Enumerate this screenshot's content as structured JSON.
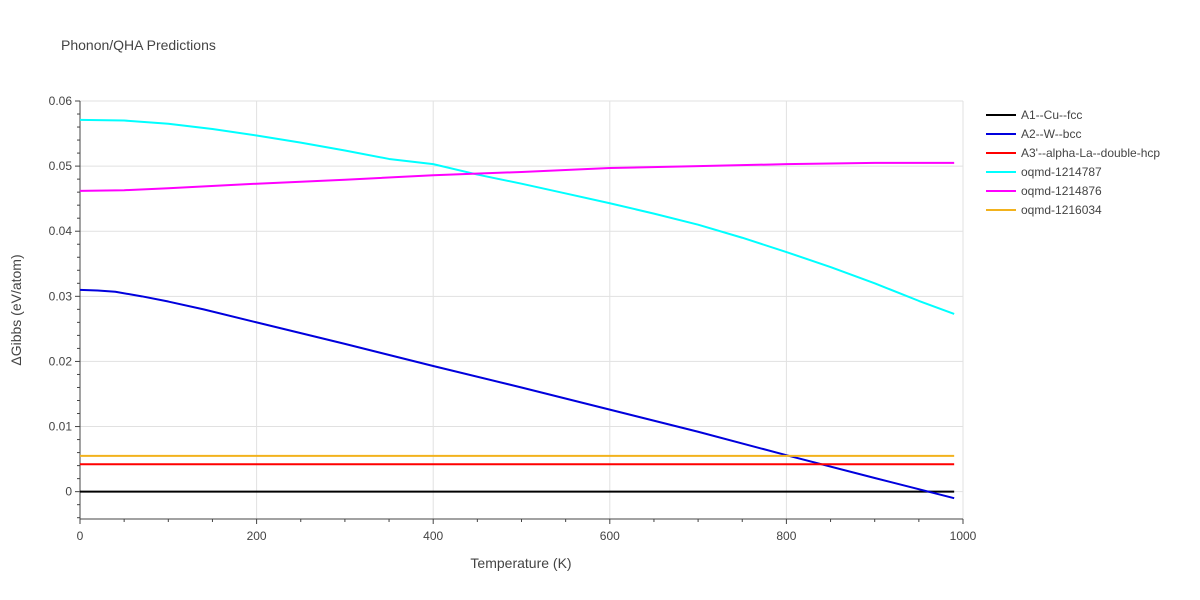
{
  "chart_data": {
    "type": "line",
    "title": "Phonon/QHA Predictions",
    "xlabel": "Temperature (K)",
    "ylabel": "ΔGibbs (eV/atom)",
    "xlim": [
      0,
      1000
    ],
    "ylim": [
      -0.0042,
      0.06
    ],
    "x_ticks": [
      0,
      200,
      400,
      600,
      800,
      1000
    ],
    "x_tick_labels": [
      "0",
      "200",
      "400",
      "600",
      "800",
      "1000"
    ],
    "y_ticks": [
      0,
      0.01,
      0.02,
      0.03,
      0.04,
      0.05,
      0.06
    ],
    "y_tick_labels": [
      "0",
      "0.01",
      "0.02",
      "0.03",
      "0.04",
      "0.05",
      "0.06"
    ],
    "grid": true,
    "legend_position": "right",
    "series": [
      {
        "name": "A1--Cu--fcc",
        "color": "#000000",
        "x": [
          0,
          100,
          200,
          300,
          400,
          500,
          600,
          700,
          800,
          900,
          990
        ],
        "y": [
          0,
          0,
          0,
          0,
          0,
          0,
          0,
          0,
          0,
          0,
          0
        ]
      },
      {
        "name": "A2--W--bcc",
        "color": "#0000dd",
        "x": [
          0,
          20,
          40,
          70,
          100,
          140,
          200,
          300,
          400,
          500,
          600,
          700,
          800,
          900,
          990
        ],
        "y": [
          0.031,
          0.0309,
          0.0307,
          0.03,
          0.0292,
          0.028,
          0.026,
          0.0227,
          0.0193,
          0.016,
          0.0126,
          0.0092,
          0.0056,
          0.0021,
          -0.001
        ]
      },
      {
        "name": "A3'--alpha-La--double-hcp",
        "color": "#ff0000",
        "x": [
          0,
          100,
          200,
          300,
          400,
          500,
          600,
          700,
          800,
          900,
          990
        ],
        "y": [
          0.0042,
          0.0042,
          0.0042,
          0.0042,
          0.0042,
          0.0042,
          0.0042,
          0.0042,
          0.0042,
          0.0042,
          0.0042
        ]
      },
      {
        "name": "oqmd-1214787",
        "color": "#00ffff",
        "x": [
          0,
          50,
          100,
          150,
          200,
          250,
          300,
          350,
          400,
          450,
          500,
          550,
          600,
          650,
          700,
          750,
          800,
          850,
          900,
          950,
          990
        ],
        "y": [
          0.0571,
          0.057,
          0.0565,
          0.0557,
          0.0547,
          0.0536,
          0.0524,
          0.0511,
          0.0503,
          0.0487,
          0.0473,
          0.0458,
          0.0443,
          0.0427,
          0.041,
          0.039,
          0.0368,
          0.0345,
          0.032,
          0.0293,
          0.0273
        ]
      },
      {
        "name": "oqmd-1214876",
        "color": "#ff00ff",
        "x": [
          0,
          50,
          100,
          200,
          300,
          400,
          500,
          600,
          700,
          800,
          900,
          990
        ],
        "y": [
          0.0462,
          0.0463,
          0.0466,
          0.0473,
          0.0479,
          0.0486,
          0.0491,
          0.0497,
          0.05,
          0.0503,
          0.0505,
          0.0505
        ]
      },
      {
        "name": "oqmd-1216034",
        "color": "#f2b21d",
        "x": [
          0,
          100,
          200,
          300,
          400,
          500,
          600,
          700,
          800,
          900,
          990
        ],
        "y": [
          0.0055,
          0.0055,
          0.0055,
          0.0055,
          0.0055,
          0.0055,
          0.0055,
          0.0055,
          0.0055,
          0.0055,
          0.0055
        ]
      }
    ]
  }
}
